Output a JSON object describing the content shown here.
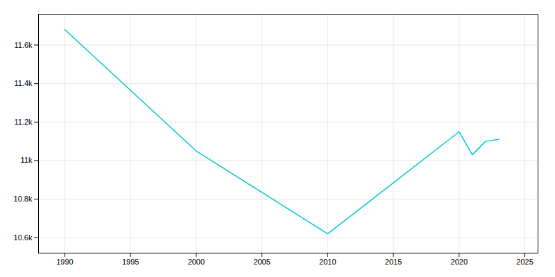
{
  "chart_data": {
    "type": "line",
    "x": [
      1990,
      2000,
      2010,
      2020,
      2021,
      2022,
      2023
    ],
    "values": [
      11680,
      11050,
      10620,
      11150,
      11030,
      11100,
      11110
    ],
    "color": "#00c8c8",
    "xlim": [
      1988,
      2026
    ],
    "xticks": [
      1990,
      1995,
      2000,
      2005,
      2010,
      2015,
      2020,
      2025
    ],
    "ylim": [
      10520,
      11760
    ],
    "yticks": [
      {
        "value": 10600,
        "label": "10.6k"
      },
      {
        "value": 10800,
        "label": "10.8k"
      },
      {
        "value": 11000,
        "label": "11k"
      },
      {
        "value": 11200,
        "label": "11.2k"
      },
      {
        "value": 11400,
        "label": "11.4k"
      },
      {
        "value": 11600,
        "label": "11.6k"
      }
    ],
    "grid": true
  }
}
